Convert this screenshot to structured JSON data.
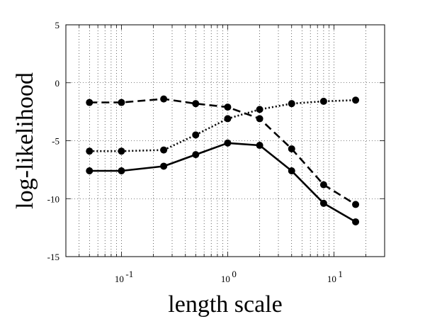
{
  "chart_data": {
    "type": "line",
    "title": "",
    "xlabel": "length scale",
    "ylabel": "log-likelihood",
    "xscale": "log",
    "xlim": [
      0.03,
      30
    ],
    "ylim": [
      -15,
      5
    ],
    "grid": true,
    "grid_style": "dotted",
    "x_tick_labels": [
      {
        "base": "10",
        "exp": "-1",
        "value": 0.1
      },
      {
        "base": "10",
        "exp": "0",
        "value": 1
      },
      {
        "base": "10",
        "exp": "1",
        "value": 10
      }
    ],
    "y_tick_labels": [
      "5",
      "0",
      "-5",
      "-10",
      "-15"
    ],
    "y_tick_values": [
      5,
      0,
      -5,
      -10,
      -15
    ],
    "x": [
      0.05,
      0.1,
      0.25,
      0.5,
      1,
      2,
      4,
      8,
      16
    ],
    "series": [
      {
        "style": "dashed",
        "color": "#000000",
        "values": [
          -1.7,
          -1.7,
          -1.4,
          -1.8,
          -2.1,
          -3.1,
          -5.7,
          -8.8,
          -10.5
        ]
      },
      {
        "style": "dotted",
        "color": "#000000",
        "values": [
          -5.9,
          -5.9,
          -5.8,
          -4.5,
          -3.1,
          -2.3,
          -1.8,
          -1.6,
          -1.5
        ]
      },
      {
        "style": "solid",
        "color": "#000000",
        "values": [
          -7.6,
          -7.6,
          -7.2,
          -6.2,
          -5.2,
          -5.4,
          -7.6,
          -10.4,
          -12.0
        ]
      }
    ]
  }
}
